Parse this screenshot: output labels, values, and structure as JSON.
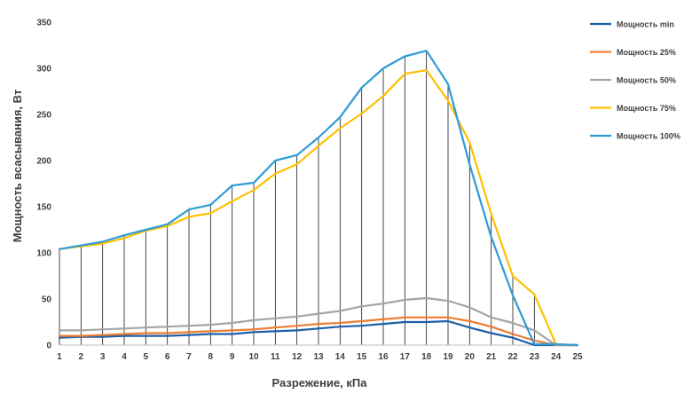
{
  "chart_data": {
    "type": "line",
    "title": "",
    "xlabel": "Разрежение, кПа",
    "ylabel": "Мощность всасывания, Вт",
    "x": [
      1,
      2,
      3,
      4,
      5,
      6,
      7,
      8,
      9,
      10,
      11,
      12,
      13,
      14,
      15,
      16,
      17,
      18,
      19,
      20,
      21,
      22,
      23,
      24,
      25
    ],
    "xlim": [
      1,
      25
    ],
    "ylim": [
      0,
      350
    ],
    "yticks": [
      0,
      50,
      100,
      150,
      200,
      250,
      300,
      350
    ],
    "grid": false,
    "drop_lines": true,
    "legend": "right",
    "series": [
      {
        "name": "Мощность min",
        "color": "#1f5fa8",
        "values": [
          8,
          9,
          9,
          10,
          10,
          10,
          11,
          12,
          12,
          14,
          15,
          16,
          18,
          20,
          21,
          23,
          25,
          25,
          26,
          19,
          13,
          8,
          0,
          0,
          0
        ]
      },
      {
        "name": "Мощность 25%",
        "color": "#ed7d31",
        "values": [
          10,
          10,
          11,
          12,
          13,
          13,
          14,
          15,
          16,
          17,
          19,
          21,
          23,
          24,
          26,
          28,
          30,
          30,
          30,
          26,
          20,
          12,
          5,
          0,
          0
        ]
      },
      {
        "name": "Мощность 50%",
        "color": "#a5a5a5",
        "values": [
          16,
          16,
          17,
          18,
          19,
          20,
          21,
          22,
          24,
          27,
          29,
          31,
          34,
          37,
          42,
          45,
          49,
          51,
          48,
          41,
          30,
          24,
          16,
          0,
          0
        ]
      },
      {
        "name": "Мощность 75%",
        "color": "#ffc000",
        "values": [
          104,
          107,
          110,
          116,
          124,
          129,
          139,
          143,
          156,
          168,
          186,
          196,
          216,
          235,
          251,
          270,
          294,
          298,
          265,
          220,
          142,
          75,
          55,
          1,
          0
        ]
      },
      {
        "name": "Мощность 100%",
        "color": "#2e9bd6",
        "values": [
          104,
          108,
          112,
          119,
          125,
          131,
          147,
          152,
          173,
          176,
          200,
          206,
          225,
          247,
          279,
          300,
          313,
          319,
          283,
          196,
          117,
          54,
          1,
          1,
          0
        ]
      }
    ]
  }
}
